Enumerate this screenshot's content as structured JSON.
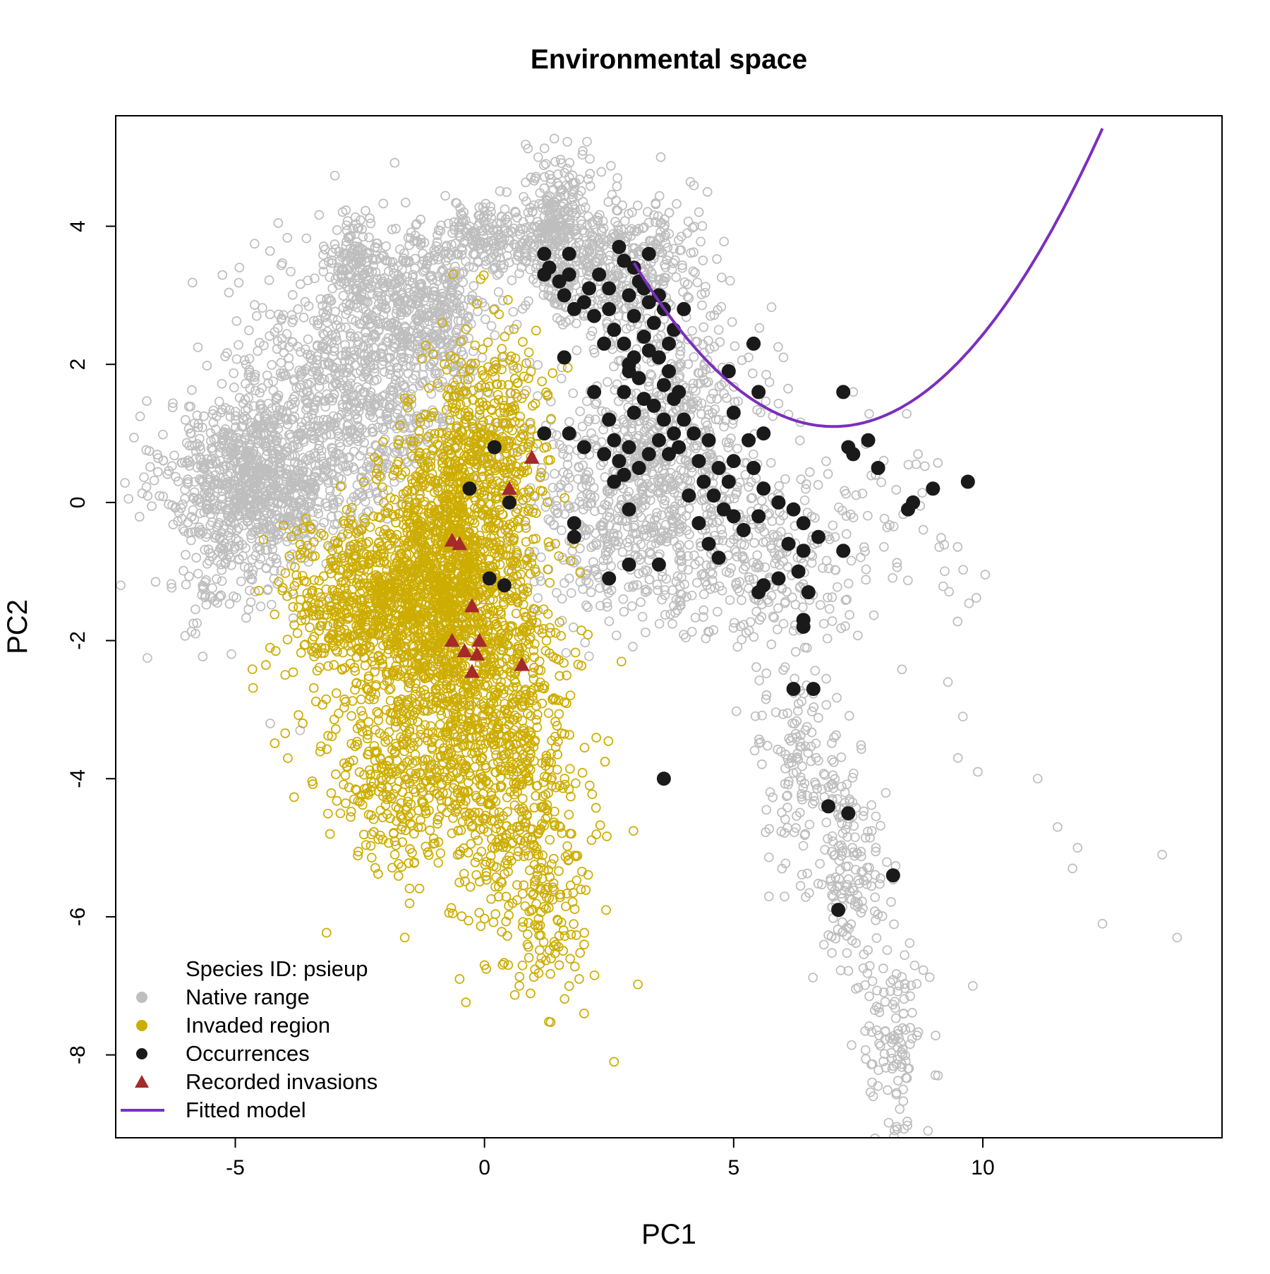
{
  "chart_data": {
    "type": "scatter",
    "title": "Environmental space",
    "xlabel": "PC1",
    "ylabel": "PC2",
    "xlim": [
      -7.4,
      14.8
    ],
    "ylim": [
      -9.2,
      5.6
    ],
    "xticks": [
      "-5",
      "0",
      "5",
      "10"
    ],
    "yticks": [
      "4",
      "2",
      "0",
      "-2",
      "-4",
      "-6",
      "-8"
    ],
    "grid": false,
    "legend_position": "bottom-left",
    "legend_header": "Species ID: psieup",
    "legend": [
      {
        "label": "Native range",
        "kind": "point",
        "color": "#bebebe"
      },
      {
        "label": "Invaded region",
        "kind": "point",
        "color": "#cdad00"
      },
      {
        "label": "Occurrences",
        "kind": "point",
        "color": "#1a1a1a"
      },
      {
        "label": "Recorded invasions",
        "kind": "triangle",
        "color": "#a52a2a"
      },
      {
        "label": "Fitted model",
        "kind": "line",
        "color": "#7b2fbe"
      }
    ],
    "series": [
      {
        "name": "Native range",
        "marker": "open-circle",
        "color": "#bebebe",
        "clusters": [
          {
            "cx": -4.6,
            "cy": 0.3,
            "sx": 0.9,
            "sy": 0.6,
            "n": 900
          },
          {
            "cx": -2.6,
            "cy": 1.6,
            "sx": 1.2,
            "sy": 1.0,
            "n": 900
          },
          {
            "cx": -1.2,
            "cy": 2.7,
            "sx": 0.6,
            "sy": 0.5,
            "n": 350
          },
          {
            "cx": 0.0,
            "cy": 3.8,
            "sx": 0.6,
            "sy": 0.25,
            "n": 200
          },
          {
            "cx": -2.6,
            "cy": 3.5,
            "sx": 0.3,
            "sy": 0.3,
            "n": 140
          },
          {
            "cx": 1.4,
            "cy": 4.2,
            "sx": 0.3,
            "sy": 0.5,
            "n": 200
          },
          {
            "cx": 2.4,
            "cy": 3.5,
            "sx": 0.9,
            "sy": 0.5,
            "n": 450
          },
          {
            "cx": 3.0,
            "cy": 0.0,
            "sx": 1.1,
            "sy": 0.8,
            "n": 600
          },
          {
            "cx": 3.8,
            "cy": 1.3,
            "sx": 0.9,
            "sy": 0.9,
            "n": 400
          },
          {
            "cx": 5.5,
            "cy": -1.0,
            "sx": 0.9,
            "sy": 0.6,
            "n": 200
          },
          {
            "cx": 6.4,
            "cy": -3.8,
            "sx": 0.5,
            "sy": 0.8,
            "n": 150
          },
          {
            "cx": 7.4,
            "cy": -5.5,
            "sx": 0.35,
            "sy": 0.8,
            "n": 150
          },
          {
            "cx": 8.2,
            "cy": -7.8,
            "sx": 0.3,
            "sy": 0.7,
            "n": 110
          },
          {
            "cx": 7.5,
            "cy": -0.5,
            "sx": 1.4,
            "sy": 0.8,
            "n": 100
          },
          {
            "cx": -5.2,
            "cy": -1.3,
            "sx": 0.6,
            "sy": 0.4,
            "n": 60
          }
        ],
        "outliers": [
          [
            -6.6,
            -1.15
          ],
          [
            -5.8,
            -1.9
          ],
          [
            -3.7,
            -3.3
          ],
          [
            -4.3,
            -3.2
          ],
          [
            11.1,
            -4.0
          ],
          [
            11.5,
            -4.7
          ],
          [
            11.9,
            -5.0
          ],
          [
            11.8,
            -5.3
          ],
          [
            12.4,
            -6.1
          ],
          [
            13.6,
            -5.1
          ],
          [
            13.9,
            -6.3
          ],
          [
            9.8,
            -7.0
          ],
          [
            9.5,
            -3.7
          ],
          [
            9.9,
            -3.9
          ],
          [
            9.3,
            -2.6
          ],
          [
            9.6,
            -3.1
          ],
          [
            7.8,
            -8.6
          ],
          [
            8.4,
            -8.5
          ],
          [
            8.9,
            -9.1
          ],
          [
            9.1,
            -8.3
          ],
          [
            5.3,
            2.1
          ],
          [
            6.0,
            2.1
          ],
          [
            4.7,
            2.5
          ],
          [
            7.4,
            1.6
          ],
          [
            8.7,
            0.7
          ]
        ]
      },
      {
        "name": "Invaded region",
        "marker": "open-circle",
        "color": "#cdad00",
        "clusters": [
          {
            "cx": -2.0,
            "cy": -1.4,
            "sx": 1.0,
            "sy": 0.6,
            "n": 800
          },
          {
            "cx": -0.9,
            "cy": -0.6,
            "sx": 0.6,
            "sy": 0.9,
            "n": 700
          },
          {
            "cx": 0.1,
            "cy": 0.6,
            "sx": 0.6,
            "sy": 0.9,
            "n": 500
          },
          {
            "cx": -1.0,
            "cy": -3.0,
            "sx": 1.2,
            "sy": 1.0,
            "n": 700
          },
          {
            "cx": 0.0,
            "cy": -2.5,
            "sx": 0.8,
            "sy": 1.0,
            "n": 500
          },
          {
            "cx": 0.6,
            "cy": -4.6,
            "sx": 0.7,
            "sy": 0.9,
            "n": 250
          },
          {
            "cx": 1.2,
            "cy": -5.9,
            "sx": 0.5,
            "sy": 0.7,
            "n": 100
          },
          {
            "cx": -1.5,
            "cy": -4.4,
            "sx": 0.9,
            "sy": 0.6,
            "n": 150
          }
        ],
        "outliers": [
          [
            -3.1,
            -4.8
          ],
          [
            -1.6,
            -6.3
          ],
          [
            -0.5,
            -6.9
          ],
          [
            0.7,
            -7.0
          ],
          [
            2.0,
            -7.4
          ],
          [
            2.6,
            -8.1
          ],
          [
            1.9,
            -6.9
          ],
          [
            1.5,
            -6.7
          ],
          [
            0.0,
            -6.7
          ],
          [
            2.0,
            -6.4
          ]
        ]
      },
      {
        "name": "Occurrences",
        "marker": "filled-circle",
        "color": "#1a1a1a",
        "points": [
          [
            1.2,
            3.3
          ],
          [
            1.3,
            3.4
          ],
          [
            1.2,
            3.6
          ],
          [
            1.5,
            3.2
          ],
          [
            1.7,
            3.3
          ],
          [
            1.6,
            3.0
          ],
          [
            1.8,
            2.8
          ],
          [
            1.7,
            3.6
          ],
          [
            2.0,
            2.9
          ],
          [
            2.1,
            3.1
          ],
          [
            2.2,
            2.7
          ],
          [
            2.3,
            3.3
          ],
          [
            2.5,
            3.1
          ],
          [
            2.7,
            3.7
          ],
          [
            2.8,
            3.5
          ],
          [
            2.5,
            2.8
          ],
          [
            2.6,
            2.5
          ],
          [
            2.9,
            3.0
          ],
          [
            3.0,
            2.7
          ],
          [
            3.1,
            3.2
          ],
          [
            3.0,
            3.4
          ],
          [
            3.2,
            2.4
          ],
          [
            3.3,
            2.9
          ],
          [
            3.4,
            2.6
          ],
          [
            3.5,
            3.0
          ],
          [
            3.2,
            3.1
          ],
          [
            2.8,
            2.3
          ],
          [
            2.9,
            2.0
          ],
          [
            3.0,
            2.1
          ],
          [
            3.3,
            2.2
          ],
          [
            3.1,
            1.8
          ],
          [
            3.5,
            2.1
          ],
          [
            3.6,
            1.7
          ],
          [
            3.7,
            1.9
          ],
          [
            3.8,
            1.5
          ],
          [
            3.9,
            1.6
          ],
          [
            3.4,
            1.4
          ],
          [
            3.2,
            1.5
          ],
          [
            3.0,
            1.3
          ],
          [
            2.8,
            1.6
          ],
          [
            2.9,
            1.9
          ],
          [
            3.6,
            1.2
          ],
          [
            3.8,
            1.0
          ],
          [
            4.0,
            1.2
          ],
          [
            3.9,
            0.8
          ],
          [
            3.7,
            0.7
          ],
          [
            3.5,
            0.9
          ],
          [
            3.3,
            0.7
          ],
          [
            3.1,
            0.5
          ],
          [
            2.9,
            0.8
          ],
          [
            2.7,
            0.6
          ],
          [
            3.6,
            2.8
          ],
          [
            3.8,
            2.5
          ],
          [
            3.7,
            2.3
          ],
          [
            4.0,
            2.8
          ],
          [
            3.3,
            3.6
          ],
          [
            2.4,
            2.3
          ],
          [
            2.2,
            1.6
          ],
          [
            2.5,
            1.2
          ],
          [
            2.6,
            0.9
          ],
          [
            2.6,
            0.3
          ],
          [
            2.4,
            0.7
          ],
          [
            2.8,
            0.4
          ],
          [
            1.6,
            2.1
          ],
          [
            1.7,
            1.0
          ],
          [
            2.0,
            0.8
          ],
          [
            4.2,
            1.0
          ],
          [
            4.3,
            0.6
          ],
          [
            4.4,
            0.3
          ],
          [
            4.5,
            0.9
          ],
          [
            4.7,
            0.5
          ],
          [
            4.6,
            0.1
          ],
          [
            4.8,
            -0.1
          ],
          [
            4.9,
            0.3
          ],
          [
            5.0,
            0.6
          ],
          [
            4.1,
            0.1
          ],
          [
            4.3,
            -0.3
          ],
          [
            4.5,
            -0.6
          ],
          [
            4.7,
            -0.8
          ],
          [
            5.0,
            -0.2
          ],
          [
            5.2,
            -0.4
          ],
          [
            5.5,
            -0.2
          ],
          [
            5.6,
            0.2
          ],
          [
            5.4,
            0.5
          ],
          [
            5.3,
            0.9
          ],
          [
            5.6,
            1.0
          ],
          [
            5.9,
            0.0
          ],
          [
            6.2,
            -0.1
          ],
          [
            6.4,
            -0.3
          ],
          [
            6.1,
            -0.6
          ],
          [
            6.7,
            -0.5
          ],
          [
            6.4,
            -0.7
          ],
          [
            5.9,
            -1.1
          ],
          [
            6.3,
            -1.0
          ],
          [
            6.5,
            -1.3
          ],
          [
            5.5,
            -1.3
          ],
          [
            5.6,
            -1.2
          ],
          [
            4.9,
            1.9
          ],
          [
            5.4,
            2.3
          ],
          [
            5.5,
            1.6
          ],
          [
            5.0,
            1.3
          ],
          [
            7.2,
            1.6
          ],
          [
            7.3,
            0.8
          ],
          [
            7.4,
            0.7
          ],
          [
            7.7,
            0.9
          ],
          [
            7.9,
            0.5
          ],
          [
            8.6,
            0.0
          ],
          [
            8.5,
            -0.1
          ],
          [
            9.0,
            0.2
          ],
          [
            9.7,
            0.3
          ],
          [
            7.2,
            -0.7
          ],
          [
            6.4,
            -1.7
          ],
          [
            6.4,
            -1.8
          ],
          [
            6.2,
            -2.7
          ],
          [
            6.6,
            -2.7
          ],
          [
            6.9,
            -4.4
          ],
          [
            7.3,
            -4.5
          ],
          [
            8.2,
            -5.4
          ],
          [
            7.1,
            -5.9
          ],
          [
            3.6,
            -4.0
          ],
          [
            0.2,
            0.8
          ],
          [
            -0.3,
            0.2
          ],
          [
            0.5,
            0.0
          ],
          [
            0.1,
            -1.1
          ],
          [
            0.4,
            -1.2
          ],
          [
            1.8,
            -0.3
          ],
          [
            1.8,
            -0.5
          ],
          [
            2.5,
            -1.1
          ],
          [
            2.9,
            -0.1
          ],
          [
            2.9,
            -0.9
          ],
          [
            3.5,
            -0.9
          ],
          [
            1.2,
            1.0
          ]
        ]
      },
      {
        "name": "Recorded invasions",
        "marker": "filled-triangle",
        "color": "#a52a2a",
        "points": [
          [
            0.95,
            0.65
          ],
          [
            0.5,
            0.2
          ],
          [
            -0.65,
            -0.55
          ],
          [
            -0.5,
            -0.6
          ],
          [
            -0.25,
            -1.5
          ],
          [
            -0.65,
            -2.0
          ],
          [
            -0.1,
            -2.0
          ],
          [
            -0.4,
            -2.15
          ],
          [
            -0.15,
            -2.2
          ],
          [
            -0.25,
            -2.45
          ],
          [
            0.75,
            -2.35
          ]
        ]
      },
      {
        "name": "Fitted model",
        "marker": "line",
        "color": "#7b2fbe",
        "vertex": [
          7.0,
          1.1
        ],
        "quadratic_coefficient": 0.148,
        "x_range": [
          3.0,
          12.4
        ]
      }
    ]
  }
}
